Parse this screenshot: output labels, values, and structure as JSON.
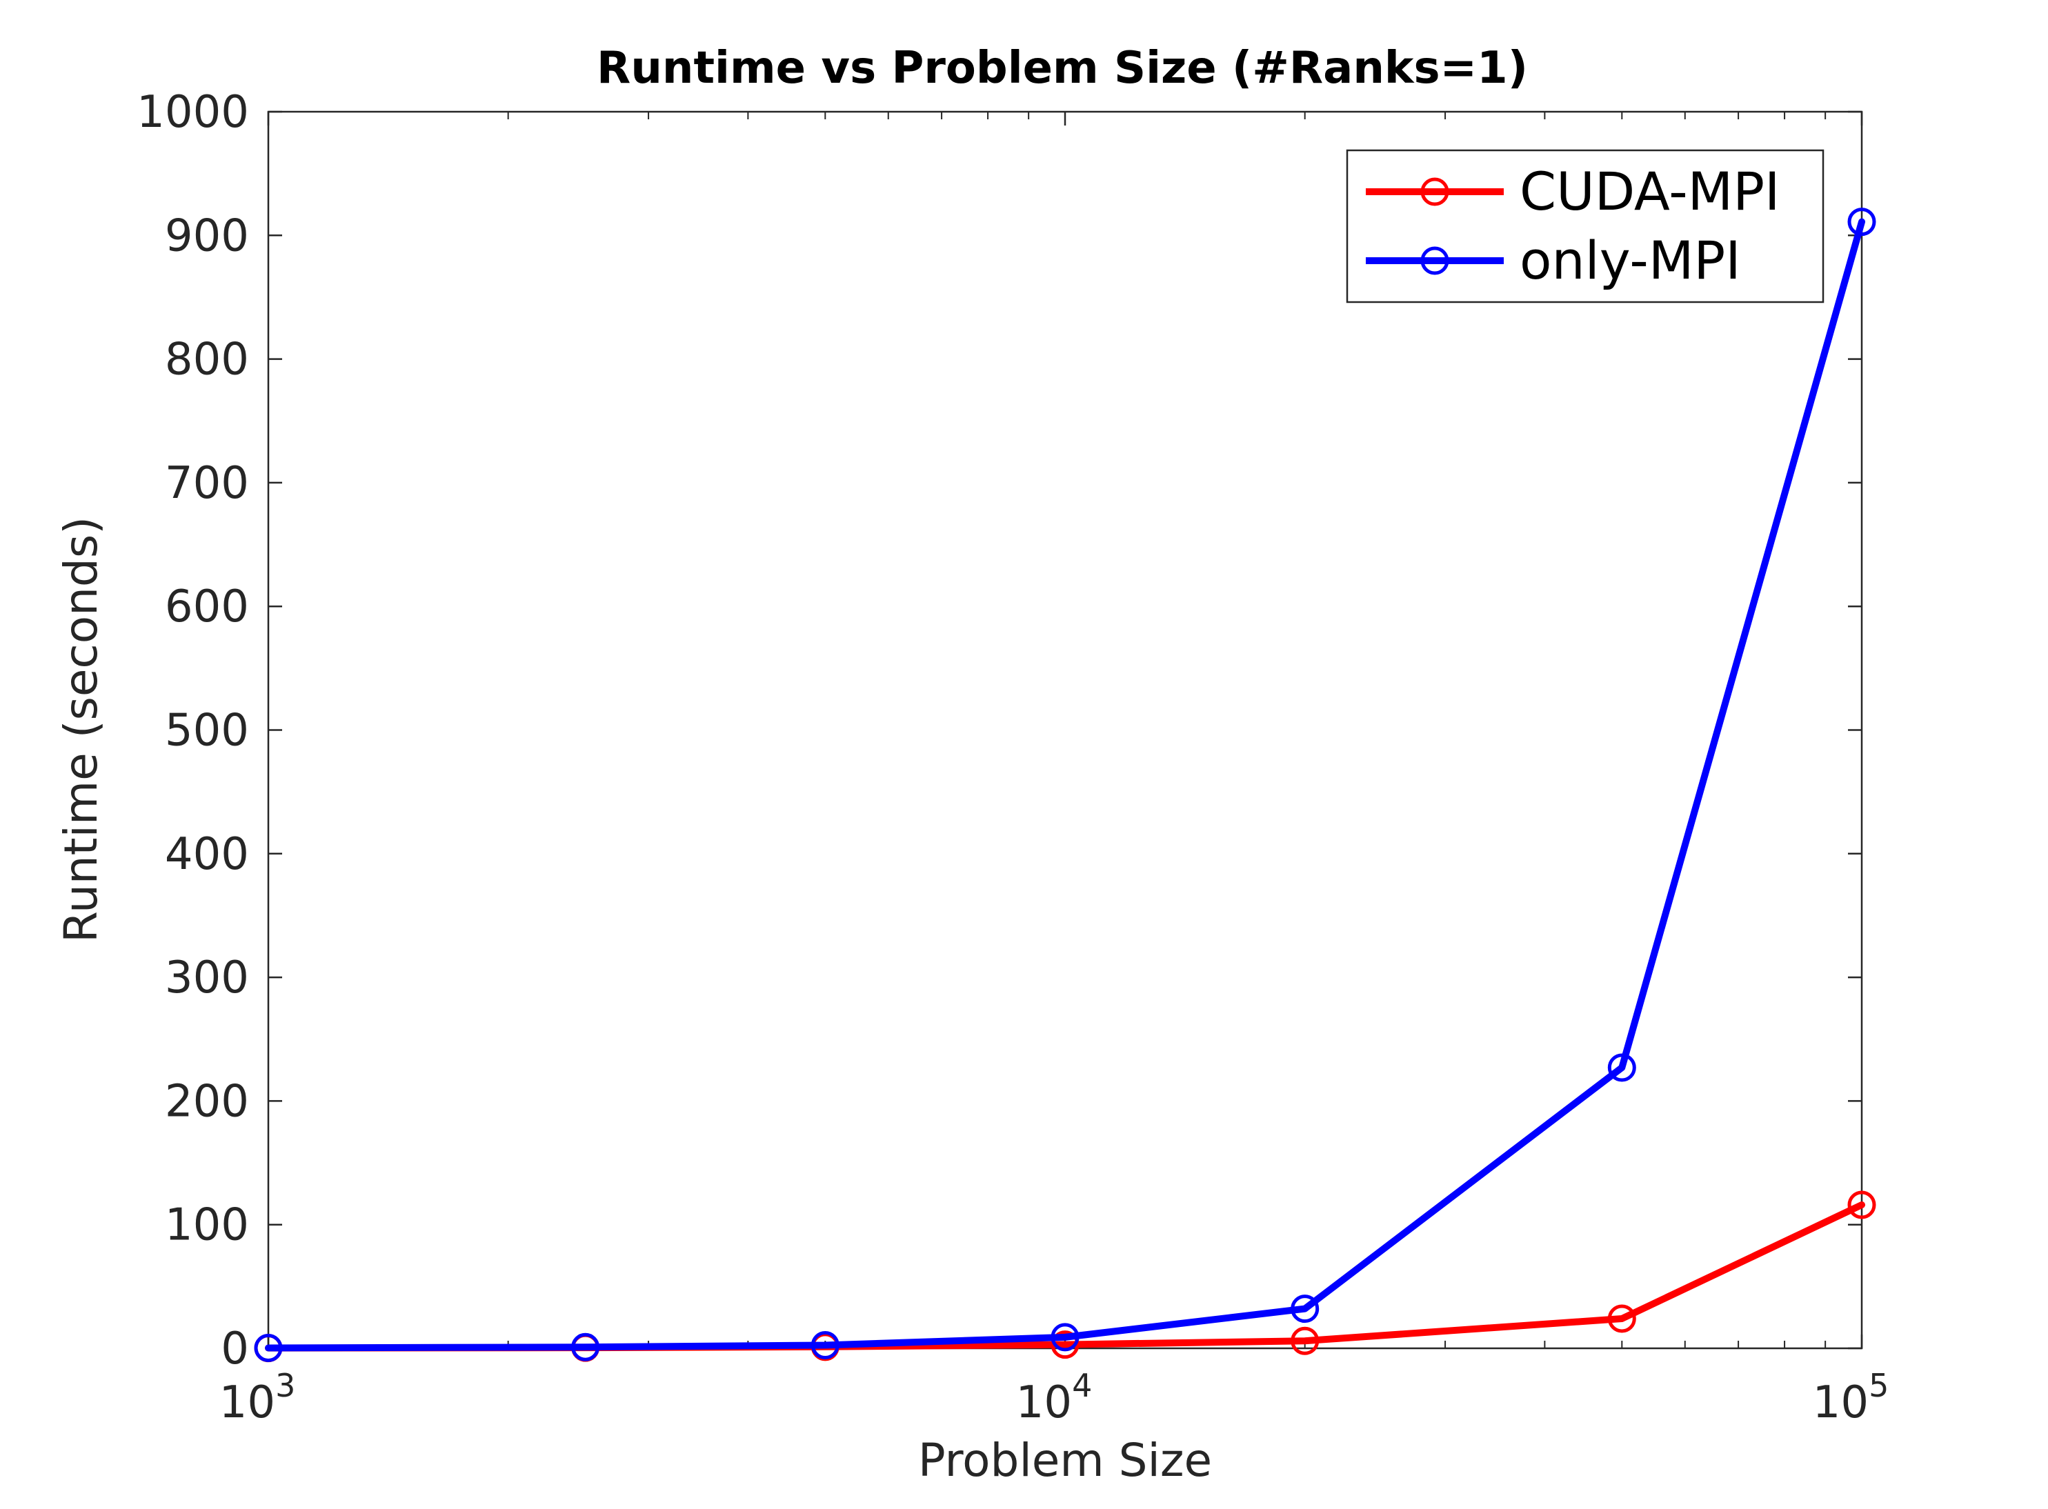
{
  "chart_data": {
    "type": "line",
    "title": "Runtime vs Problem Size (#Ranks=1)",
    "xlabel": "Problem Size",
    "ylabel": "Runtime (seconds)",
    "xscale": "log",
    "xlim": [
      1000,
      100000
    ],
    "ylim": [
      0,
      1000
    ],
    "xticks": [
      {
        "value": 1000,
        "base": "10",
        "exp": "3"
      },
      {
        "value": 10000,
        "base": "10",
        "exp": "4"
      },
      {
        "value": 100000,
        "base": "10",
        "exp": "5"
      }
    ],
    "yticks": [
      0,
      100,
      200,
      300,
      400,
      500,
      600,
      700,
      800,
      900,
      1000
    ],
    "ytick_labels": [
      "0",
      "100",
      "200",
      "300",
      "400",
      "500",
      "600",
      "700",
      "800",
      "900",
      "1000"
    ],
    "x": [
      1000,
      2500,
      5000,
      10000,
      20000,
      50000,
      100000
    ],
    "series": [
      {
        "name": "CUDA-MPI",
        "color": "#ff0000",
        "marker": "circle",
        "values": [
          0.2,
          0.5,
          1.2,
          3,
          6,
          24,
          116
        ]
      },
      {
        "name": "only-MPI",
        "color": "#0000ff",
        "marker": "circle",
        "values": [
          0.3,
          1,
          2.5,
          9,
          32,
          227,
          911
        ]
      }
    ],
    "grid": false,
    "legend_position": "top-right"
  }
}
